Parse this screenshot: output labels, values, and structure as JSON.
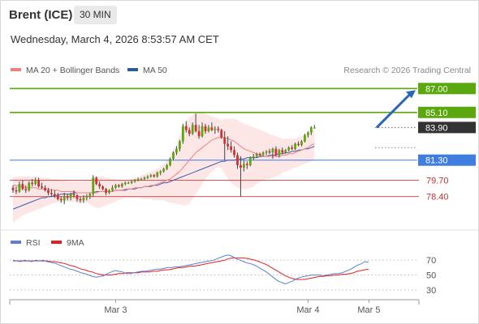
{
  "header": {
    "symbol": "Brent (ICE)",
    "interval": "30 MIN",
    "datetime": "Wednesday, March 4, 2026 8:53:57 AM CET",
    "attribution": "Research © 2026 Trading Central"
  },
  "legend": {
    "main": [
      {
        "label": "MA 20 + Bollinger Bands",
        "color": "#f08080"
      },
      {
        "label": "MA 50",
        "color": "#2e5c9a"
      }
    ],
    "rsi": [
      {
        "label": "RSI",
        "color": "#5b7fd6"
      },
      {
        "label": "9MA",
        "color": "#e02020"
      }
    ]
  },
  "chart_data": [
    {
      "type": "candlestick",
      "ylim": [
        75.8,
        87.6
      ],
      "levels": [
        {
          "value": 87.0,
          "label": "87.00",
          "kind": "resistance",
          "color": "#5aa70e"
        },
        {
          "value": 85.1,
          "label": "85.10",
          "kind": "resistance",
          "color": "#5aa70e"
        },
        {
          "value": 83.9,
          "label": "83.90",
          "kind": "last",
          "color": "#333333"
        },
        {
          "value": 81.3,
          "label": "81.30",
          "kind": "pivot",
          "color": "#3f7de0"
        },
        {
          "value": 79.7,
          "label": "79.70",
          "kind": "support",
          "color": "#e05050"
        },
        {
          "value": 78.4,
          "label": "78.40",
          "kind": "support",
          "color": "#e05050"
        }
      ],
      "arrow": {
        "from": 83.9,
        "to": 87.0,
        "direction": "up",
        "color": "#2c65b8"
      },
      "x_ticks": [
        {
          "label": "Mar 3",
          "index": 32
        },
        {
          "label": "Mar 4",
          "index": 92
        },
        {
          "label": "Mar 5",
          "index": 111
        }
      ],
      "candles": [
        [
          79.1,
          79.3,
          78.7,
          78.9
        ],
        [
          78.9,
          79.2,
          78.6,
          78.8
        ],
        [
          78.8,
          79.6,
          78.7,
          79.4
        ],
        [
          79.4,
          79.7,
          78.9,
          79.0
        ],
        [
          79.0,
          79.3,
          78.7,
          78.9
        ],
        [
          78.9,
          79.6,
          78.8,
          79.5
        ],
        [
          79.5,
          79.8,
          79.2,
          79.4
        ],
        [
          79.4,
          79.9,
          79.3,
          79.7
        ],
        [
          79.7,
          79.9,
          79.1,
          79.2
        ],
        [
          79.2,
          79.5,
          79.0,
          79.1
        ],
        [
          79.1,
          79.3,
          78.8,
          78.9
        ],
        [
          78.9,
          79.1,
          78.5,
          78.7
        ],
        [
          78.7,
          79.0,
          78.4,
          78.6
        ],
        [
          78.6,
          78.9,
          78.3,
          78.5
        ],
        [
          78.5,
          78.7,
          78.1,
          78.2
        ],
        [
          78.2,
          78.4,
          77.9,
          78.1
        ],
        [
          78.1,
          78.7,
          77.8,
          78.4
        ],
        [
          78.4,
          78.6,
          78.1,
          78.3
        ],
        [
          78.3,
          78.7,
          78.1,
          78.6
        ],
        [
          78.6,
          78.9,
          78.3,
          78.5
        ],
        [
          78.5,
          78.6,
          78.0,
          78.2
        ],
        [
          78.2,
          78.4,
          77.9,
          78.1
        ],
        [
          78.1,
          78.5,
          77.9,
          78.3
        ],
        [
          78.3,
          78.6,
          78.1,
          78.4
        ],
        [
          78.4,
          78.7,
          78.2,
          78.6
        ],
        [
          78.6,
          80.1,
          78.4,
          79.9
        ],
        [
          79.9,
          80.0,
          79.3,
          79.4
        ],
        [
          79.4,
          79.6,
          79.0,
          79.2
        ],
        [
          79.2,
          79.3,
          78.9,
          79.0
        ],
        [
          79.0,
          79.1,
          78.5,
          78.7
        ],
        [
          78.7,
          79.0,
          78.6,
          78.9
        ],
        [
          78.9,
          79.3,
          78.8,
          79.1
        ],
        [
          79.1,
          79.4,
          79.0,
          79.3
        ],
        [
          79.3,
          79.4,
          79.1,
          79.2
        ],
        [
          79.2,
          79.5,
          79.1,
          79.4
        ],
        [
          79.4,
          79.6,
          79.3,
          79.5
        ],
        [
          79.5,
          79.6,
          79.4,
          79.5
        ],
        [
          79.5,
          79.7,
          79.4,
          79.6
        ],
        [
          79.6,
          79.8,
          79.5,
          79.7
        ],
        [
          79.7,
          79.9,
          79.6,
          79.8
        ],
        [
          79.8,
          79.9,
          79.7,
          79.8
        ],
        [
          79.8,
          80.0,
          79.7,
          79.9
        ],
        [
          79.9,
          80.1,
          79.8,
          80.0
        ],
        [
          80.0,
          80.2,
          79.9,
          80.1
        ],
        [
          80.1,
          80.2,
          79.9,
          80.0
        ],
        [
          80.0,
          80.4,
          79.9,
          80.3
        ],
        [
          80.3,
          80.5,
          80.1,
          80.4
        ],
        [
          80.4,
          80.7,
          80.3,
          80.6
        ],
        [
          80.6,
          81.0,
          80.5,
          80.9
        ],
        [
          80.9,
          81.5,
          80.8,
          81.4
        ],
        [
          81.4,
          82.0,
          81.3,
          81.9
        ],
        [
          81.9,
          82.4,
          81.7,
          82.2
        ],
        [
          82.2,
          82.9,
          82.0,
          82.8
        ],
        [
          82.8,
          84.2,
          82.6,
          84.0
        ],
        [
          84.0,
          84.4,
          83.5,
          83.7
        ],
        [
          83.7,
          83.9,
          83.2,
          83.4
        ],
        [
          83.4,
          84.3,
          83.3,
          84.1
        ],
        [
          84.1,
          85.0,
          83.5,
          83.6
        ],
        [
          83.6,
          84.1,
          83.0,
          83.2
        ],
        [
          83.2,
          84.3,
          83.1,
          84.0
        ],
        [
          84.0,
          84.2,
          83.4,
          83.6
        ],
        [
          83.6,
          84.1,
          83.5,
          83.9
        ],
        [
          83.9,
          84.3,
          83.6,
          83.7
        ],
        [
          83.7,
          84.0,
          83.4,
          83.8
        ],
        [
          83.8,
          84.0,
          83.5,
          83.7
        ],
        [
          83.7,
          83.8,
          83.0,
          83.1
        ],
        [
          83.1,
          83.6,
          81.3,
          82.6
        ],
        [
          82.6,
          83.2,
          82.1,
          82.4
        ],
        [
          82.4,
          82.8,
          81.9,
          82.1
        ],
        [
          82.1,
          82.4,
          81.5,
          81.7
        ],
        [
          81.7,
          81.9,
          80.6,
          80.9
        ],
        [
          80.9,
          81.6,
          78.4,
          80.7
        ],
        [
          80.7,
          81.3,
          80.4,
          81.0
        ],
        [
          81.0,
          81.2,
          80.6,
          80.9
        ],
        [
          80.9,
          81.6,
          80.8,
          81.5
        ],
        [
          81.5,
          81.8,
          81.3,
          81.6
        ],
        [
          81.6,
          81.9,
          81.5,
          81.8
        ],
        [
          81.8,
          81.9,
          81.6,
          81.7
        ],
        [
          81.7,
          82.0,
          81.6,
          81.9
        ],
        [
          81.9,
          82.1,
          81.7,
          82.0
        ],
        [
          82.0,
          82.2,
          81.8,
          81.9
        ],
        [
          81.9,
          82.3,
          81.4,
          82.2
        ],
        [
          82.2,
          82.4,
          81.6,
          81.7
        ],
        [
          81.7,
          82.2,
          81.5,
          82.1
        ],
        [
          82.1,
          82.3,
          81.8,
          81.9
        ],
        [
          81.9,
          82.2,
          81.8,
          82.1
        ],
        [
          82.1,
          82.4,
          82.0,
          82.3
        ],
        [
          82.3,
          82.5,
          82.1,
          82.2
        ],
        [
          82.2,
          82.7,
          82.1,
          82.6
        ],
        [
          82.6,
          82.8,
          82.4,
          82.5
        ],
        [
          82.5,
          82.9,
          82.4,
          82.8
        ],
        [
          82.8,
          83.4,
          82.7,
          83.3
        ],
        [
          83.3,
          83.6,
          83.1,
          83.5
        ],
        [
          83.5,
          84.0,
          83.3,
          83.9
        ],
        [
          83.9,
          84.1,
          83.8,
          83.9
        ]
      ],
      "ma20": [
        79.3,
        79.3,
        79.2,
        79.2,
        79.1,
        79.1,
        79.1,
        79.1,
        79.0,
        79.0,
        79.0,
        79.0,
        78.9,
        78.9,
        78.9,
        78.8,
        78.8,
        78.8,
        78.8,
        78.8,
        78.7,
        78.7,
        78.7,
        78.7,
        78.7,
        78.7,
        78.7,
        78.8,
        78.8,
        78.8,
        78.8,
        78.8,
        78.9,
        78.9,
        78.9,
        79.0,
        79.0,
        79.0,
        79.1,
        79.1,
        79.1,
        79.2,
        79.2,
        79.3,
        79.3,
        79.4,
        79.5,
        79.6,
        79.7,
        79.8,
        80.0,
        80.2,
        80.4,
        80.7,
        81.0,
        81.3,
        81.6,
        81.9,
        82.1,
        82.3,
        82.5,
        82.7,
        82.9,
        83.0,
        83.1,
        83.1,
        83.1,
        83.0,
        82.9,
        82.8,
        82.6,
        82.4,
        82.2,
        82.1,
        82.0,
        81.9,
        81.8,
        81.7,
        81.6,
        81.6,
        81.6,
        81.6,
        81.6,
        81.6,
        81.7,
        81.7,
        81.8,
        81.8,
        81.9,
        82.0,
        82.1,
        82.2,
        82.3,
        82.5,
        82.6
      ],
      "ma50": [
        77.4,
        77.5,
        77.6,
        77.7,
        77.8,
        77.9,
        78.0,
        78.1,
        78.2,
        78.3,
        78.3,
        78.4,
        78.4,
        78.5,
        78.5,
        78.6,
        78.6,
        78.6,
        78.6,
        78.7,
        78.7,
        78.7,
        78.7,
        78.7,
        78.7,
        78.7,
        78.8,
        78.8,
        78.8,
        78.8,
        78.8,
        78.8,
        78.9,
        78.9,
        78.9,
        78.9,
        79.0,
        79.0,
        79.0,
        79.1,
        79.1,
        79.2,
        79.2,
        79.2,
        79.3,
        79.3,
        79.4,
        79.5,
        79.5,
        79.6,
        79.7,
        79.8,
        79.9,
        80.0,
        80.1,
        80.2,
        80.3,
        80.4,
        80.5,
        80.6,
        80.7,
        80.8,
        80.9,
        81.0,
        81.1,
        81.2,
        81.2,
        81.3,
        81.3,
        81.3,
        81.4,
        81.4,
        81.4,
        81.5,
        81.5,
        81.5,
        81.5,
        81.6,
        81.6,
        81.6,
        81.7,
        81.7,
        81.7,
        81.8,
        81.8,
        81.9,
        81.9,
        82.0,
        82.0,
        82.1,
        82.1,
        82.2,
        82.2,
        82.3,
        82.4
      ],
      "bb_upper": [
        79.9,
        80.0,
        80.0,
        80.0,
        80.0,
        80.0,
        80.0,
        80.0,
        80.0,
        79.9,
        79.9,
        79.9,
        79.8,
        79.8,
        79.8,
        79.7,
        79.7,
        79.6,
        79.6,
        79.6,
        79.6,
        79.6,
        79.6,
        79.6,
        79.7,
        79.9,
        80.0,
        80.0,
        80.0,
        79.9,
        79.9,
        79.8,
        79.8,
        79.7,
        79.7,
        79.7,
        79.7,
        79.8,
        79.9,
        80.0,
        80.1,
        80.2,
        80.3,
        80.4,
        80.5,
        80.6,
        80.8,
        81.0,
        81.3,
        81.7,
        82.1,
        82.6,
        83.2,
        83.9,
        84.4,
        84.7,
        84.9,
        85.1,
        85.1,
        85.1,
        85.0,
        84.9,
        84.8,
        84.7,
        84.6,
        84.5,
        84.6,
        84.6,
        84.6,
        84.6,
        84.5,
        84.3,
        84.2,
        84.1,
        84.0,
        83.9,
        83.8,
        83.7,
        83.6,
        83.5,
        83.4,
        83.3,
        83.2,
        83.1,
        83.0,
        83.0,
        83.0,
        83.0,
        83.0,
        83.1,
        83.2,
        83.3,
        83.4,
        83.6,
        83.8
      ],
      "bb_lower": [
        76.3,
        76.5,
        76.7,
        76.9,
        77.0,
        77.1,
        77.2,
        77.3,
        77.4,
        77.5,
        77.6,
        77.7,
        77.8,
        77.9,
        77.9,
        78.0,
        78.0,
        78.0,
        78.0,
        78.0,
        77.9,
        77.9,
        77.9,
        77.9,
        77.8,
        77.6,
        77.5,
        77.5,
        77.6,
        77.7,
        77.8,
        77.9,
        78.0,
        78.1,
        78.2,
        78.3,
        78.3,
        78.3,
        78.3,
        78.3,
        78.2,
        78.2,
        78.2,
        78.2,
        78.1,
        78.1,
        78.1,
        78.1,
        78.0,
        77.9,
        77.9,
        77.8,
        77.8,
        77.7,
        77.7,
        77.9,
        78.2,
        78.6,
        79.0,
        79.4,
        79.8,
        80.1,
        80.4,
        80.6,
        80.8,
        80.6,
        80.2,
        79.8,
        79.5,
        79.3,
        79.1,
        79.0,
        79.0,
        79.0,
        79.1,
        79.2,
        79.4,
        79.6,
        79.7,
        79.8,
        79.8,
        79.9,
        80.0,
        80.1,
        80.3,
        80.4,
        80.5,
        80.6,
        80.7,
        80.8,
        80.9,
        81.0,
        81.1,
        81.2,
        81.3
      ]
    },
    {
      "type": "line",
      "name": "RSI",
      "ylim": [
        20,
        80
      ],
      "y_ticks": [
        70,
        50,
        30
      ],
      "rsi": [
        70,
        69,
        68,
        70,
        69,
        68,
        70,
        69,
        70,
        68,
        67,
        66,
        64,
        62,
        60,
        58,
        57,
        55,
        53,
        52,
        50,
        48,
        47,
        48,
        49,
        52,
        54,
        56,
        55,
        54,
        52,
        52,
        53,
        54,
        55,
        55,
        56,
        57,
        58,
        58,
        59,
        60,
        60,
        61,
        61,
        62,
        63,
        64,
        65,
        66,
        67,
        68,
        69,
        70,
        72,
        74,
        76,
        77,
        75,
        72,
        70,
        68,
        66,
        65,
        63,
        60,
        57,
        54,
        50,
        46,
        42,
        40,
        38,
        40,
        42,
        45,
        47,
        48,
        49,
        50,
        50,
        50,
        49,
        50,
        51,
        52,
        52,
        53,
        55,
        57,
        60,
        63,
        65,
        68,
        67
      ],
      "ma9": [
        69,
        69,
        69,
        69,
        69,
        69,
        69,
        69,
        69,
        69,
        68,
        68,
        67,
        66,
        65,
        63,
        62,
        60,
        58,
        57,
        55,
        54,
        52,
        51,
        50,
        50,
        50,
        51,
        52,
        52,
        53,
        53,
        53,
        53,
        54,
        54,
        54,
        55,
        55,
        56,
        57,
        57,
        58,
        59,
        60,
        60,
        61,
        62,
        62,
        63,
        64,
        65,
        66,
        67,
        68,
        69,
        70,
        72,
        73,
        73,
        73,
        73,
        72,
        71,
        70,
        68,
        66,
        64,
        61,
        58,
        55,
        52,
        49,
        47,
        45,
        44,
        44,
        44,
        45,
        46,
        47,
        48,
        48,
        49,
        49,
        50,
        50,
        51,
        51,
        52,
        53,
        55,
        56,
        57,
        58
      ]
    }
  ]
}
